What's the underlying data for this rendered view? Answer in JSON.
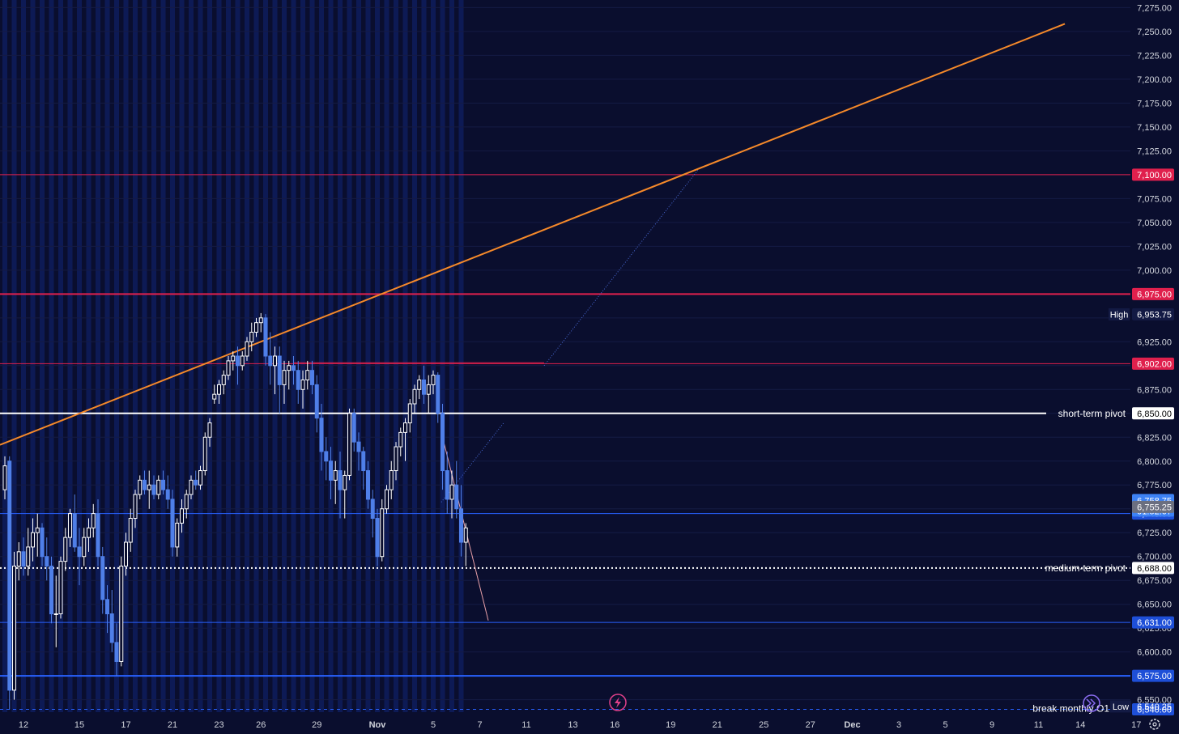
{
  "colors": {
    "background": "#0a0e2e",
    "session_band": "#0d1a55",
    "bull_candle": "#ffffff",
    "bear_candle": "#4f7fe8",
    "trendline": "#f5892a",
    "resistance": "#e0204d",
    "support": "#2962ff",
    "pivot": "#ffffff"
  },
  "chart_data": {
    "type": "candlestick",
    "ylim": [
      6537,
      7283
    ],
    "y_ticks": [
      "6,550.00",
      "6,575.00",
      "6,600.00",
      "6,625.00",
      "6,650.00",
      "6,675.00",
      "6,700.00",
      "6,725.00",
      "6,775.00",
      "6,800.00",
      "6,825.00",
      "6,875.00",
      "6,925.00",
      "7,000.00",
      "7,025.00",
      "7,050.00",
      "7,075.00",
      "7,125.00",
      "7,150.00",
      "7,175.00",
      "7,200.00",
      "7,225.00",
      "7,250.00",
      "7,275.00"
    ],
    "x_ticks": [
      {
        "label": "12",
        "bar": 4
      },
      {
        "label": "15",
        "bar": 16
      },
      {
        "label": "17",
        "bar": 26
      },
      {
        "label": "21",
        "bar": 36
      },
      {
        "label": "23",
        "bar": 46
      },
      {
        "label": "26",
        "bar": 55
      },
      {
        "label": "29",
        "bar": 67
      },
      {
        "label": "Nov",
        "bar": 80
      },
      {
        "label": "5",
        "bar": 92
      },
      {
        "label": "7",
        "bar": 102
      },
      {
        "label": "11",
        "bar": 112
      },
      {
        "label": "13",
        "bar": 122
      },
      {
        "label": "16",
        "bar": 131
      },
      {
        "label": "19",
        "bar": 143
      },
      {
        "label": "21",
        "bar": 153
      },
      {
        "label": "25",
        "bar": 163
      },
      {
        "label": "27",
        "bar": 173
      },
      {
        "label": "Dec",
        "bar": 182
      },
      {
        "label": "3",
        "bar": 192
      },
      {
        "label": "5",
        "bar": 202
      },
      {
        "label": "9",
        "bar": 212
      },
      {
        "label": "11",
        "bar": 222
      },
      {
        "label": "14",
        "bar": 231
      },
      {
        "label": "17",
        "bar": 243
      }
    ],
    "ohlc": [
      [
        6770,
        6805,
        6760,
        6795
      ],
      [
        6800,
        6805,
        6540,
        6560
      ],
      [
        6560,
        6705,
        6550,
        6690
      ],
      [
        6690,
        6715,
        6675,
        6705
      ],
      [
        6705,
        6720,
        6680,
        6690
      ],
      [
        6690,
        6730,
        6680,
        6710
      ],
      [
        6710,
        6740,
        6695,
        6725
      ],
      [
        6725,
        6745,
        6700,
        6730
      ],
      [
        6730,
        6735,
        6690,
        6700
      ],
      [
        6700,
        6720,
        6675,
        6690
      ],
      [
        6690,
        6700,
        6630,
        6640
      ],
      [
        6640,
        6680,
        6605,
        6640
      ],
      [
        6640,
        6700,
        6635,
        6695
      ],
      [
        6695,
        6730,
        6685,
        6720
      ],
      [
        6720,
        6750,
        6710,
        6745
      ],
      [
        6745,
        6765,
        6705,
        6710
      ],
      [
        6710,
        6730,
        6670,
        6700
      ],
      [
        6700,
        6730,
        6690,
        6720
      ],
      [
        6720,
        6740,
        6705,
        6730
      ],
      [
        6730,
        6755,
        6720,
        6745
      ],
      [
        6745,
        6760,
        6690,
        6700
      ],
      [
        6700,
        6710,
        6640,
        6655
      ],
      [
        6655,
        6670,
        6620,
        6640
      ],
      [
        6640,
        6665,
        6600,
        6610
      ],
      [
        6610,
        6630,
        6575,
        6590
      ],
      [
        6590,
        6700,
        6585,
        6690
      ],
      [
        6690,
        6725,
        6680,
        6715
      ],
      [
        6715,
        6750,
        6705,
        6740
      ],
      [
        6740,
        6770,
        6730,
        6765
      ],
      [
        6765,
        6785,
        6760,
        6780
      ],
      [
        6780,
        6790,
        6765,
        6770
      ],
      [
        6770,
        6790,
        6750,
        6775
      ],
      [
        6775,
        6785,
        6760,
        6765
      ],
      [
        6765,
        6785,
        6760,
        6780
      ],
      [
        6780,
        6790,
        6765,
        6770
      ],
      [
        6770,
        6785,
        6750,
        6760
      ],
      [
        6760,
        6770,
        6700,
        6710
      ],
      [
        6710,
        6740,
        6700,
        6735
      ],
      [
        6735,
        6760,
        6725,
        6750
      ],
      [
        6750,
        6770,
        6740,
        6765
      ],
      [
        6765,
        6785,
        6760,
        6780
      ],
      [
        6780,
        6790,
        6770,
        6775
      ],
      [
        6775,
        6795,
        6770,
        6790
      ],
      [
        6790,
        6830,
        6785,
        6825
      ],
      [
        6825,
        6845,
        6815,
        6840
      ],
      [
        6865,
        6880,
        6860,
        6870
      ],
      [
        6870,
        6885,
        6860,
        6880
      ],
      [
        6880,
        6895,
        6870,
        6890
      ],
      [
        6890,
        6910,
        6885,
        6905
      ],
      [
        6905,
        6915,
        6895,
        6910
      ],
      [
        6910,
        6920,
        6880,
        6900
      ],
      [
        6900,
        6915,
        6895,
        6910
      ],
      [
        6910,
        6930,
        6905,
        6925
      ],
      [
        6925,
        6945,
        6915,
        6935
      ],
      [
        6935,
        6950,
        6930,
        6945
      ],
      [
        6945,
        6955,
        6935,
        6950
      ],
      [
        6950,
        6954,
        6900,
        6910
      ],
      [
        6910,
        6935,
        6880,
        6900
      ],
      [
        6900,
        6920,
        6870,
        6910
      ],
      [
        6910,
        6920,
        6850,
        6880
      ],
      [
        6880,
        6905,
        6860,
        6895
      ],
      [
        6895,
        6905,
        6875,
        6900
      ],
      [
        6900,
        6910,
        6880,
        6895
      ],
      [
        6895,
        6905,
        6860,
        6875
      ],
      [
        6875,
        6895,
        6855,
        6885
      ],
      [
        6885,
        6905,
        6875,
        6895
      ],
      [
        6895,
        6905,
        6870,
        6880
      ],
      [
        6880,
        6890,
        6830,
        6845
      ],
      [
        6845,
        6860,
        6790,
        6810
      ],
      [
        6810,
        6825,
        6780,
        6800
      ],
      [
        6800,
        6815,
        6760,
        6780
      ],
      [
        6780,
        6800,
        6755,
        6790
      ],
      [
        6790,
        6810,
        6740,
        6770
      ],
      [
        6770,
        6790,
        6740,
        6785
      ],
      [
        6785,
        6855,
        6780,
        6850
      ],
      [
        6850,
        6855,
        6810,
        6820
      ],
      [
        6820,
        6830,
        6790,
        6810
      ],
      [
        6810,
        6815,
        6770,
        6790
      ],
      [
        6790,
        6800,
        6750,
        6760
      ],
      [
        6760,
        6770,
        6720,
        6740
      ],
      [
        6740,
        6750,
        6690,
        6700
      ],
      [
        6700,
        6760,
        6695,
        6750
      ],
      [
        6750,
        6775,
        6745,
        6770
      ],
      [
        6770,
        6800,
        6760,
        6790
      ],
      [
        6790,
        6820,
        6780,
        6815
      ],
      [
        6815,
        6835,
        6805,
        6830
      ],
      [
        6830,
        6845,
        6800,
        6840
      ],
      [
        6840,
        6865,
        6830,
        6860
      ],
      [
        6860,
        6880,
        6850,
        6875
      ],
      [
        6875,
        6890,
        6865,
        6885
      ],
      [
        6885,
        6900,
        6860,
        6870
      ],
      [
        6870,
        6890,
        6850,
        6880
      ],
      [
        6880,
        6895,
        6870,
        6890
      ],
      [
        6890,
        6893,
        6840,
        6850
      ],
      [
        6850,
        6860,
        6770,
        6790
      ],
      [
        6790,
        6810,
        6745,
        6760
      ],
      [
        6760,
        6790,
        6740,
        6775
      ],
      [
        6775,
        6800,
        6740,
        6750
      ],
      [
        6750,
        6775,
        6700,
        6715
      ],
      [
        6715,
        6735,
        6690,
        6730
      ]
    ]
  },
  "price_axis": {
    "last_price": "6,758.75",
    "countdown": "01:52:07",
    "prev_close": "6,755.25",
    "high_label": "High",
    "high_value": "6,953.75",
    "low_label": "Low",
    "low_value": "6,540.25"
  },
  "levels": [
    {
      "value": 7100,
      "label": "7,100.00",
      "kind": "resistance",
      "width": 1
    },
    {
      "value": 6975,
      "label": "6,975.00",
      "kind": "resistance",
      "width": 2
    },
    {
      "value": 6902,
      "label": "6,902.00",
      "kind": "resistance",
      "width": 1
    },
    {
      "value": 6850,
      "label": "6,850.00",
      "kind": "pivot",
      "width": 2
    },
    {
      "value": 6745,
      "label": "6,745.00",
      "kind": "support",
      "width": 1
    },
    {
      "value": 6688,
      "label": "6,688.00",
      "kind": "pivot-dotted",
      "width": 2
    },
    {
      "value": 6631,
      "label": "6,631.00",
      "kind": "support",
      "width": 1
    },
    {
      "value": 6575,
      "label": "6,575.00",
      "kind": "support",
      "width": 2
    },
    {
      "value": 6540,
      "label": "6,540.00",
      "kind": "support-dashed",
      "width": 1
    }
  ],
  "annotations": {
    "short_term_pivot": "short-term pivot",
    "medium_term_pivot": "medium-term pivot",
    "break_monthly": "break monthly O1"
  },
  "icons": {
    "lightning": "lightning-icon",
    "forward": "fast-forward-icon",
    "settings": "settings-icon"
  }
}
